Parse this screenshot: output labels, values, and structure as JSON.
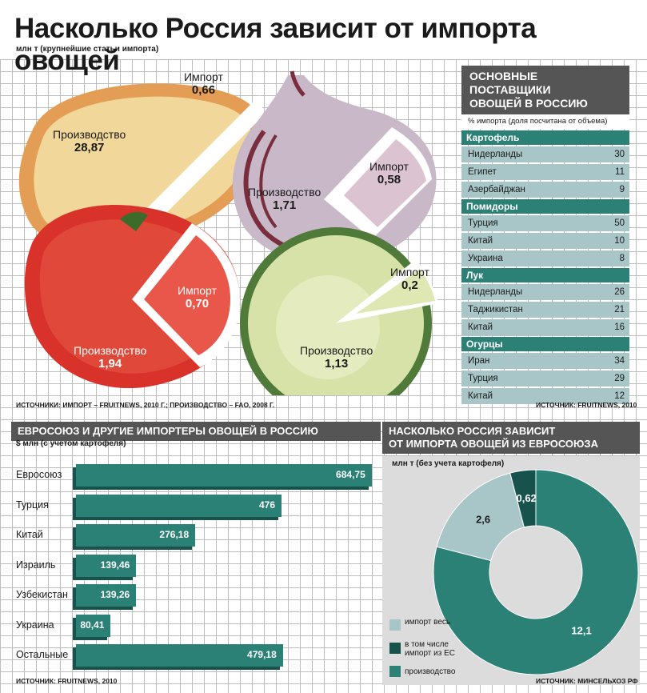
{
  "title": "Насколько Россия зависит от импорта овощей",
  "subtitle": "млн т (крупнейшие статьи импорта)",
  "vegetables": [
    {
      "name": "potato",
      "production_label": "Производство",
      "production": "28,87",
      "import_label": "Импорт",
      "import": "0,66"
    },
    {
      "name": "onion",
      "production_label": "Производство",
      "production": "1,71",
      "import_label": "Импорт",
      "import": "0,58"
    },
    {
      "name": "tomato",
      "production_label": "Производство",
      "production": "1,94",
      "import_label": "Импорт",
      "import": "0,70"
    },
    {
      "name": "cucumber",
      "production_label": "Производство",
      "production": "1,13",
      "import_label": "Импорт",
      "import": "0,2"
    }
  ],
  "sources": {
    "veg": "ИСТОЧНИКИ: ИМПОРТ – FRUITNEWS, 2010 Г.; ПРОИЗВОДСТВО – FAO, 2008 Г.",
    "suppliers": "ИСТОЧНИК: FRUITNEWS, 2010",
    "bars": "ИСТОЧНИК: FRUITNEWS, 2010",
    "donut": "ИСТОЧНИК: МИНСЕЛЬХОЗ РФ"
  },
  "suppliers": {
    "title_line1": "ОСНОВНЫЕ ПОСТАВЩИКИ",
    "title_line2": "ОВОЩЕЙ В РОССИЮ",
    "note": "% импорта (доля посчитана от объема)",
    "groups": [
      {
        "name": "Картофель",
        "rows": [
          {
            "country": "Нидерланды",
            "value": "30"
          },
          {
            "country": "Египет",
            "value": "11"
          },
          {
            "country": "Азербайджан",
            "value": "9"
          }
        ]
      },
      {
        "name": "Помидоры",
        "rows": [
          {
            "country": "Турция",
            "value": "50"
          },
          {
            "country": "Китай",
            "value": "10"
          },
          {
            "country": "Украина",
            "value": "8"
          }
        ]
      },
      {
        "name": "Лук",
        "rows": [
          {
            "country": "Нидерланды",
            "value": "26"
          },
          {
            "country": "Таджикистан",
            "value": "21"
          },
          {
            "country": "Китай",
            "value": "16"
          }
        ]
      },
      {
        "name": "Огурцы",
        "rows": [
          {
            "country": "Иран",
            "value": "34"
          },
          {
            "country": "Турция",
            "value": "29"
          },
          {
            "country": "Китай",
            "value": "12"
          }
        ]
      }
    ]
  },
  "importers": {
    "title": "ЕВРОСОЮЗ И ДРУГИЕ ИМПОРТЕРЫ ОВОЩЕЙ В РОССИЮ",
    "unit": "$ млн (с учетом картофеля)"
  },
  "eu_dependence": {
    "title_line1": "НАСКОЛЬКО РОССИЯ ЗАВИСИТ",
    "title_line2": "ОТ ИМПОРТА ОВОЩЕЙ ИЗ ЕВРОСОЮЗА",
    "unit": "млн т (без учета картофеля)",
    "legend": [
      "импорт весь",
      "в том числе импорт из ЕС",
      "производство"
    ]
  },
  "chart_data": [
    {
      "type": "bar",
      "orientation": "horizontal",
      "categories": [
        "Евросоюз",
        "Турция",
        "Китай",
        "Израиль",
        "Узбекистан",
        "Украина",
        "Остальные"
      ],
      "values": [
        684.75,
        476,
        276.18,
        139.46,
        139.26,
        80.41,
        479.18
      ],
      "value_labels": [
        "684,75",
        "476",
        "276,18",
        "139,46",
        "139,26",
        "80,41",
        "479,18"
      ],
      "xlim": [
        0,
        700
      ],
      "colors": {
        "bar": "#2b8175"
      }
    },
    {
      "type": "pie",
      "donut": true,
      "slices": [
        {
          "name": "импорт весь",
          "value": 2.6,
          "label": "2,6",
          "color": "#a8c6c8"
        },
        {
          "name": "в том числе импорт из ЕС",
          "value": 0.62,
          "label": "0,62",
          "color": "#17534c"
        },
        {
          "name": "производство",
          "value": 12.1,
          "label": "12,1",
          "color": "#2b8175"
        }
      ]
    }
  ],
  "colors": {
    "accent": "#2b8175",
    "accent_dark": "#17534c",
    "light": "#a8c6c8",
    "header": "#555555"
  }
}
